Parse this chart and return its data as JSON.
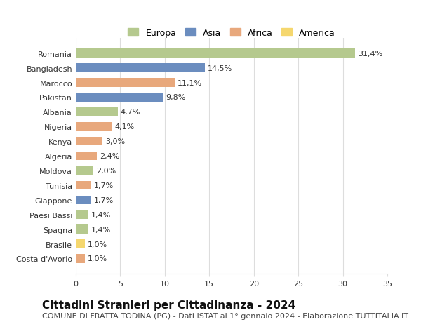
{
  "countries": [
    "Romania",
    "Bangladesh",
    "Marocco",
    "Pakistan",
    "Albania",
    "Nigeria",
    "Kenya",
    "Algeria",
    "Moldova",
    "Tunisia",
    "Giappone",
    "Paesi Bassi",
    "Spagna",
    "Brasile",
    "Costa d'Avorio"
  ],
  "values": [
    31.4,
    14.5,
    11.1,
    9.8,
    4.7,
    4.1,
    3.0,
    2.4,
    2.0,
    1.7,
    1.7,
    1.4,
    1.4,
    1.0,
    1.0
  ],
  "labels": [
    "31,4%",
    "14,5%",
    "11,1%",
    "9,8%",
    "4,7%",
    "4,1%",
    "3,0%",
    "2,4%",
    "2,0%",
    "1,7%",
    "1,7%",
    "1,4%",
    "1,4%",
    "1,0%",
    "1,0%"
  ],
  "continents": [
    "Europa",
    "Asia",
    "Africa",
    "Asia",
    "Europa",
    "Africa",
    "Africa",
    "Africa",
    "Europa",
    "Africa",
    "Asia",
    "Europa",
    "Europa",
    "America",
    "Africa"
  ],
  "continent_colors": {
    "Europa": "#b5c98e",
    "Asia": "#6b8dbf",
    "Africa": "#e8a87c",
    "America": "#f5d76e"
  },
  "legend_order": [
    "Europa",
    "Asia",
    "Africa",
    "America"
  ],
  "title": "Cittadini Stranieri per Cittadinanza - 2024",
  "subtitle": "COMUNE DI FRATTA TODINA (PG) - Dati ISTAT al 1° gennaio 2024 - Elaborazione TUTTITALIA.IT",
  "xlim": [
    0,
    35
  ],
  "xticks": [
    0,
    5,
    10,
    15,
    20,
    25,
    30,
    35
  ],
  "background_color": "#ffffff",
  "grid_color": "#dddddd",
  "bar_height": 0.6,
  "title_fontsize": 11,
  "subtitle_fontsize": 8,
  "label_fontsize": 8,
  "tick_fontsize": 8,
  "legend_fontsize": 9
}
